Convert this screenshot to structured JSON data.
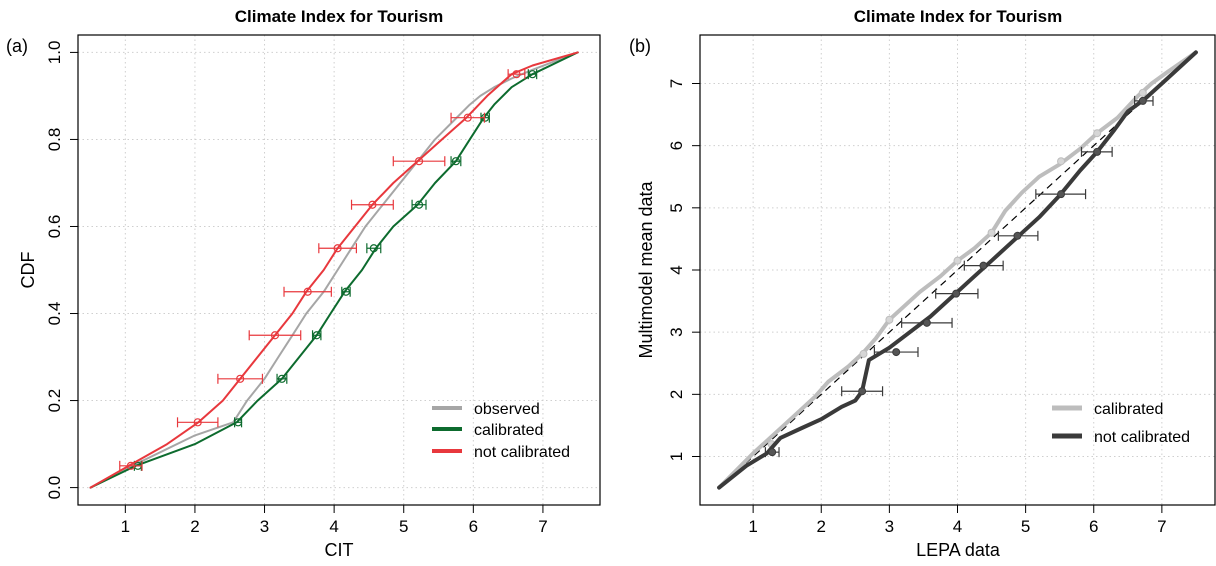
{
  "colors": {
    "observed": "#a6a6a6",
    "calibrated_a": "#0d6b2e",
    "not_calibrated_a": "#e8383d",
    "calibrated_b": "#bdbdbd",
    "not_calibrated_b": "#3a3a3a",
    "diagonal": "#000000",
    "grid": "#cfcfcf"
  },
  "chart_data": [
    {
      "type": "line",
      "panel_label": "(a)",
      "title": "Climate Index for Tourism",
      "xlabel": "CIT",
      "ylabel": "CDF",
      "xlim": [
        0.5,
        7.5
      ],
      "ylim": [
        0,
        1
      ],
      "xticks": [
        "1",
        "2",
        "3",
        "4",
        "5",
        "6",
        "7"
      ],
      "yticks": [
        "0.0",
        "0.2",
        "0.4",
        "0.6",
        "0.8",
        "1.0"
      ],
      "grid": true,
      "legend_position": "bottom-right",
      "series": [
        {
          "name": "observed",
          "color_key": "observed",
          "x": [
            0.5,
            1.1,
            2.0,
            2.55,
            2.75,
            3.0,
            3.2,
            3.4,
            3.6,
            3.85,
            4.05,
            4.25,
            4.45,
            4.7,
            4.95,
            5.2,
            5.45,
            5.7,
            5.95,
            6.1,
            6.3,
            6.55,
            6.85,
            7.5
          ],
          "y": [
            0,
            0.05,
            0.12,
            0.15,
            0.2,
            0.25,
            0.3,
            0.35,
            0.4,
            0.45,
            0.5,
            0.55,
            0.6,
            0.65,
            0.7,
            0.75,
            0.8,
            0.84,
            0.88,
            0.9,
            0.92,
            0.94,
            0.96,
            1.0
          ]
        },
        {
          "name": "calibrated",
          "color_key": "calibrated_a",
          "x": [
            0.5,
            1.15,
            2.0,
            2.6,
            2.9,
            3.25,
            3.5,
            3.75,
            3.95,
            4.15,
            4.4,
            4.6,
            4.85,
            5.2,
            5.45,
            5.75,
            5.95,
            6.15,
            6.3,
            6.55,
            6.85,
            7.5
          ],
          "y": [
            0,
            0.05,
            0.1,
            0.15,
            0.2,
            0.25,
            0.3,
            0.35,
            0.4,
            0.45,
            0.5,
            0.55,
            0.6,
            0.65,
            0.7,
            0.75,
            0.8,
            0.85,
            0.88,
            0.92,
            0.95,
            1.0
          ],
          "markers": [
            {
              "x": 1.18,
              "y": 0.05,
              "err": [
                1.13,
                1.23
              ]
            },
            {
              "x": 2.62,
              "y": 0.15,
              "err": [
                2.57,
                2.67
              ]
            },
            {
              "x": 3.25,
              "y": 0.25,
              "err": [
                3.18,
                3.32
              ]
            },
            {
              "x": 3.75,
              "y": 0.35,
              "err": [
                3.69,
                3.81
              ]
            },
            {
              "x": 4.17,
              "y": 0.45,
              "err": [
                4.11,
                4.23
              ]
            },
            {
              "x": 4.57,
              "y": 0.55,
              "err": [
                4.47,
                4.67
              ]
            },
            {
              "x": 5.22,
              "y": 0.65,
              "err": [
                5.12,
                5.32
              ]
            },
            {
              "x": 5.75,
              "y": 0.75,
              "err": [
                5.68,
                5.82
              ]
            },
            {
              "x": 6.17,
              "y": 0.85,
              "err": [
                6.11,
                6.23
              ]
            },
            {
              "x": 6.85,
              "y": 0.95,
              "err": [
                6.79,
                6.91
              ]
            }
          ]
        },
        {
          "name": "not calibrated",
          "color_key": "not_calibrated_a",
          "x": [
            0.5,
            1.05,
            1.6,
            2.05,
            2.4,
            2.65,
            2.9,
            3.15,
            3.4,
            3.6,
            3.85,
            4.05,
            4.3,
            4.55,
            4.85,
            5.2,
            5.55,
            5.9,
            6.2,
            6.55,
            6.85,
            7.5
          ],
          "y": [
            0,
            0.05,
            0.1,
            0.15,
            0.2,
            0.25,
            0.3,
            0.35,
            0.4,
            0.45,
            0.5,
            0.55,
            0.6,
            0.65,
            0.7,
            0.75,
            0.8,
            0.85,
            0.9,
            0.95,
            0.97,
            1.0
          ],
          "markers": [
            {
              "x": 1.08,
              "y": 0.05,
              "err": [
                0.92,
                1.24
              ]
            },
            {
              "x": 2.04,
              "y": 0.15,
              "err": [
                1.75,
                2.33
              ]
            },
            {
              "x": 2.65,
              "y": 0.25,
              "err": [
                2.33,
                2.97
              ]
            },
            {
              "x": 3.15,
              "y": 0.35,
              "err": [
                2.78,
                3.52
              ]
            },
            {
              "x": 3.62,
              "y": 0.45,
              "err": [
                3.28,
                3.96
              ]
            },
            {
              "x": 4.05,
              "y": 0.55,
              "err": [
                3.78,
                4.32
              ]
            },
            {
              "x": 4.55,
              "y": 0.65,
              "err": [
                4.25,
                4.85
              ]
            },
            {
              "x": 5.22,
              "y": 0.75,
              "err": [
                4.85,
                5.59
              ]
            },
            {
              "x": 5.92,
              "y": 0.85,
              "err": [
                5.68,
                6.16
              ]
            },
            {
              "x": 6.62,
              "y": 0.95,
              "err": [
                6.5,
                6.74
              ]
            }
          ]
        }
      ]
    },
    {
      "type": "line",
      "panel_label": "(b)",
      "title": "Climate Index for Tourism",
      "xlabel": "LEPA data",
      "ylabel": "Multimodel mean data",
      "xlim": [
        0.5,
        7.5
      ],
      "ylim": [
        0.5,
        7.5
      ],
      "xticks": [
        "1",
        "2",
        "3",
        "4",
        "5",
        "6",
        "7"
      ],
      "yticks": [
        "1",
        "2",
        "3",
        "4",
        "5",
        "6",
        "7"
      ],
      "grid": true,
      "legend_position": "bottom-right",
      "diagonal": true,
      "series": [
        {
          "name": "calibrated",
          "color_key": "calibrated_b",
          "x": [
            0.5,
            1.0,
            1.3,
            1.6,
            1.9,
            2.1,
            2.4,
            2.6,
            2.8,
            3.0,
            3.2,
            3.45,
            3.75,
            4.0,
            4.25,
            4.5,
            4.7,
            4.95,
            5.2,
            5.5,
            5.8,
            6.05,
            6.35,
            6.65,
            6.85,
            7.1,
            7.5
          ],
          "y": [
            0.5,
            1.05,
            1.35,
            1.65,
            1.95,
            2.2,
            2.45,
            2.65,
            2.9,
            3.2,
            3.4,
            3.65,
            3.9,
            4.15,
            4.35,
            4.6,
            4.95,
            5.25,
            5.5,
            5.7,
            5.95,
            6.2,
            6.45,
            6.8,
            7.0,
            7.2,
            7.5
          ],
          "markers": [
            {
              "x": 1.27,
              "y": 1.2
            },
            {
              "x": 2.62,
              "y": 2.65
            },
            {
              "x": 3.0,
              "y": 3.2
            },
            {
              "x": 4.0,
              "y": 4.15
            },
            {
              "x": 4.5,
              "y": 4.6
            },
            {
              "x": 5.52,
              "y": 5.75
            },
            {
              "x": 6.05,
              "y": 6.2
            },
            {
              "x": 6.72,
              "y": 6.85
            }
          ]
        },
        {
          "name": "not calibrated",
          "color_key": "not_calibrated_b",
          "x": [
            0.5,
            0.9,
            1.2,
            1.4,
            1.7,
            2.0,
            2.3,
            2.5,
            2.6,
            2.7,
            3.0,
            3.3,
            3.6,
            3.9,
            4.2,
            4.5,
            4.9,
            5.2,
            5.5,
            5.8,
            6.05,
            6.3,
            6.5,
            6.75,
            7.0,
            7.5
          ],
          "y": [
            0.5,
            0.85,
            1.05,
            1.3,
            1.45,
            1.6,
            1.8,
            1.9,
            2.05,
            2.55,
            2.75,
            3.0,
            3.25,
            3.55,
            3.85,
            4.15,
            4.55,
            4.85,
            5.2,
            5.6,
            5.9,
            6.25,
            6.55,
            6.75,
            7.0,
            7.5
          ],
          "markers": [
            {
              "x": 1.28,
              "y": 1.07,
              "err": [
                1.18,
                1.38
              ]
            },
            {
              "x": 2.6,
              "y": 2.05,
              "err": [
                2.3,
                2.9
              ]
            },
            {
              "x": 3.1,
              "y": 2.68,
              "err": [
                2.78,
                3.42
              ]
            },
            {
              "x": 3.55,
              "y": 3.15,
              "err": [
                3.18,
                3.92
              ]
            },
            {
              "x": 3.98,
              "y": 3.62,
              "err": [
                3.68,
                4.3
              ]
            },
            {
              "x": 4.38,
              "y": 4.07,
              "err": [
                4.1,
                4.67
              ]
            },
            {
              "x": 4.88,
              "y": 4.55,
              "err": [
                4.6,
                5.18
              ]
            },
            {
              "x": 5.52,
              "y": 5.22,
              "err": [
                5.15,
                5.88
              ]
            },
            {
              "x": 6.05,
              "y": 5.9,
              "err": [
                5.82,
                6.27
              ]
            },
            {
              "x": 6.72,
              "y": 6.72,
              "err": [
                6.6,
                6.87
              ]
            }
          ]
        }
      ]
    }
  ]
}
